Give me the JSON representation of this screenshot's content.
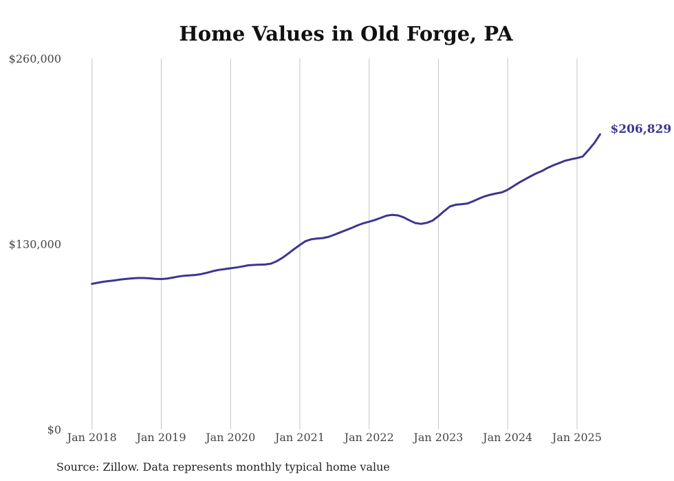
{
  "chart_data": {
    "type": "line",
    "title": "Home Values in Old Forge, PA",
    "xlabel": "",
    "ylabel": "",
    "ylim": [
      0,
      260000
    ],
    "y_ticks": [
      {
        "value": 0,
        "label": "$0"
      },
      {
        "value": 130000,
        "label": "$130,000"
      },
      {
        "value": 260000,
        "label": "$260,000"
      }
    ],
    "x_ticks": [
      {
        "value": 2018.0,
        "label": "Jan 2018"
      },
      {
        "value": 2019.0,
        "label": "Jan 2019"
      },
      {
        "value": 2020.0,
        "label": "Jan 2020"
      },
      {
        "value": 2021.0,
        "label": "Jan 2021"
      },
      {
        "value": 2022.0,
        "label": "Jan 2022"
      },
      {
        "value": 2023.0,
        "label": "Jan 2023"
      },
      {
        "value": 2024.0,
        "label": "Jan 2024"
      },
      {
        "value": 2025.0,
        "label": "Jan 2025"
      }
    ],
    "xlim": [
      2017.0,
      2026.4
    ],
    "grid": "vertical",
    "end_label": "$206,829",
    "series": [
      {
        "color": "#3d3590",
        "points": [
          [
            2018.0,
            102000
          ],
          [
            2018.083,
            102800
          ],
          [
            2018.167,
            103500
          ],
          [
            2018.25,
            104000
          ],
          [
            2018.333,
            104500
          ],
          [
            2018.417,
            105100
          ],
          [
            2018.5,
            105500
          ],
          [
            2018.583,
            105900
          ],
          [
            2018.667,
            106100
          ],
          [
            2018.75,
            106100
          ],
          [
            2018.833,
            105900
          ],
          [
            2018.917,
            105500
          ],
          [
            2019.0,
            105400
          ],
          [
            2019.083,
            105700
          ],
          [
            2019.167,
            106400
          ],
          [
            2019.25,
            107200
          ],
          [
            2019.333,
            107700
          ],
          [
            2019.417,
            108000
          ],
          [
            2019.5,
            108300
          ],
          [
            2019.583,
            108900
          ],
          [
            2019.667,
            109900
          ],
          [
            2019.75,
            111000
          ],
          [
            2019.833,
            111800
          ],
          [
            2019.917,
            112400
          ],
          [
            2020.0,
            112900
          ],
          [
            2020.083,
            113500
          ],
          [
            2020.167,
            114200
          ],
          [
            2020.25,
            115000
          ],
          [
            2020.333,
            115300
          ],
          [
            2020.417,
            115500
          ],
          [
            2020.5,
            115600
          ],
          [
            2020.583,
            116200
          ],
          [
            2020.667,
            117900
          ],
          [
            2020.75,
            120300
          ],
          [
            2020.833,
            123300
          ],
          [
            2020.917,
            126400
          ],
          [
            2021.0,
            129300
          ],
          [
            2021.083,
            132000
          ],
          [
            2021.167,
            133300
          ],
          [
            2021.25,
            133800
          ],
          [
            2021.333,
            134100
          ],
          [
            2021.417,
            135000
          ],
          [
            2021.5,
            136500
          ],
          [
            2021.583,
            138100
          ],
          [
            2021.667,
            139700
          ],
          [
            2021.75,
            141300
          ],
          [
            2021.833,
            143000
          ],
          [
            2021.917,
            144500
          ],
          [
            2022.0,
            145600
          ],
          [
            2022.083,
            146800
          ],
          [
            2022.167,
            148300
          ],
          [
            2022.25,
            149800
          ],
          [
            2022.333,
            150400
          ],
          [
            2022.417,
            150000
          ],
          [
            2022.5,
            148600
          ],
          [
            2022.583,
            146500
          ],
          [
            2022.667,
            144600
          ],
          [
            2022.75,
            144100
          ],
          [
            2022.833,
            144800
          ],
          [
            2022.917,
            146400
          ],
          [
            2023.0,
            149500
          ],
          [
            2023.083,
            153000
          ],
          [
            2023.167,
            156300
          ],
          [
            2023.25,
            157500
          ],
          [
            2023.333,
            157900
          ],
          [
            2023.417,
            158300
          ],
          [
            2023.5,
            159900
          ],
          [
            2023.583,
            161700
          ],
          [
            2023.667,
            163400
          ],
          [
            2023.75,
            164500
          ],
          [
            2023.833,
            165400
          ],
          [
            2023.917,
            166200
          ],
          [
            2024.0,
            168000
          ],
          [
            2024.083,
            170500
          ],
          [
            2024.167,
            173100
          ],
          [
            2024.25,
            175300
          ],
          [
            2024.333,
            177500
          ],
          [
            2024.417,
            179600
          ],
          [
            2024.5,
            181300
          ],
          [
            2024.583,
            183500
          ],
          [
            2024.667,
            185300
          ],
          [
            2024.75,
            186800
          ],
          [
            2024.833,
            188400
          ],
          [
            2024.917,
            189400
          ],
          [
            2025.0,
            190200
          ],
          [
            2025.083,
            191300
          ],
          [
            2025.167,
            195900
          ],
          [
            2025.25,
            200700
          ],
          [
            2025.333,
            206829
          ]
        ]
      }
    ]
  },
  "footer": {
    "source": "Source: Zillow. Data represents monthly typical home value"
  }
}
